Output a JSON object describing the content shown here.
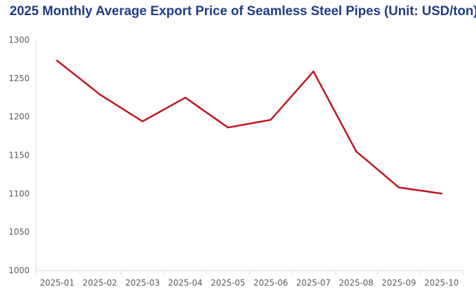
{
  "chart_data": {
    "type": "line",
    "title": "2025 Monthly Average Export Price of Seamless Steel Pipes (Unit: USD/ton)",
    "xlabel": "",
    "ylabel": "",
    "categories": [
      "2025-01",
      "2025-02",
      "2025-03",
      "2025-04",
      "2025-05",
      "2025-06",
      "2025-07",
      "2025-08",
      "2025-09",
      "2025-10"
    ],
    "series": [
      {
        "values": [
          1273,
          1229,
          1194,
          1225,
          1186,
          1196,
          1259,
          1155,
          1108,
          1100
        ]
      }
    ],
    "ylim": [
      1000,
      1300
    ],
    "yticks": [
      1000,
      1050,
      1100,
      1150,
      1200,
      1250,
      1300
    ],
    "grid": false,
    "legend": "none",
    "line_color": "#c0141f",
    "axis_color": "#d9d9d9"
  }
}
